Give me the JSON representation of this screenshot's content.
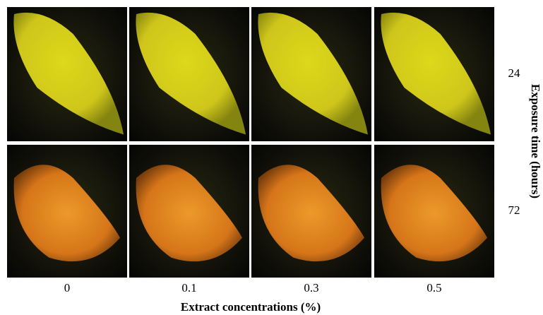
{
  "figure": {
    "columns": [
      "0",
      "0.1",
      "0.3",
      "0.5"
    ],
    "rows": [
      "24",
      "72"
    ],
    "x_label": "Extract concentrations (%)",
    "y_label": "Exposure time (hours)"
  }
}
